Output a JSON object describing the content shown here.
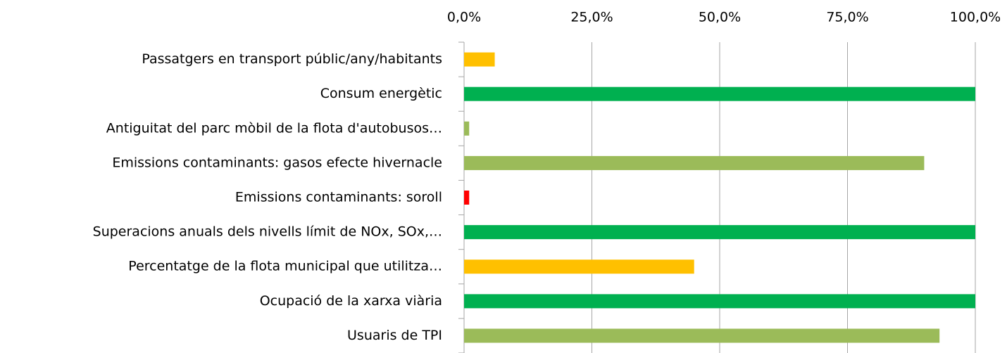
{
  "chart_data": {
    "type": "bar",
    "orientation": "horizontal",
    "categories": [
      "Passatgers en transport públic/any/habitants",
      "Consum energètic",
      "Antiguitat del parc mòbil de la flota d'autobusos…",
      "Emissions contaminants: gasos efecte hivernacle",
      "Emissions contaminants: soroll",
      "Superacions anuals dels nivells límit de NOx, SOx,…",
      "Percentatge de la flota municipal que utilitza…",
      "Ocupació de la xarxa viària",
      "Usuaris de TPI"
    ],
    "values": [
      6,
      100,
      1,
      90,
      1,
      100,
      45,
      100,
      93
    ],
    "colors": [
      "#ffc000",
      "#00b050",
      "#9bbb59",
      "#9bbb59",
      "#ff0000",
      "#00b050",
      "#ffc000",
      "#00b050",
      "#9bbb59"
    ],
    "xlim": [
      0,
      100
    ],
    "xticks": [
      {
        "value": 0,
        "label": "0,0%"
      },
      {
        "value": 25,
        "label": "25,0%"
      },
      {
        "value": 50,
        "label": "50,0%"
      },
      {
        "value": 75,
        "label": "75,0%"
      },
      {
        "value": 100,
        "label": "100,0%"
      }
    ],
    "grid": true
  }
}
